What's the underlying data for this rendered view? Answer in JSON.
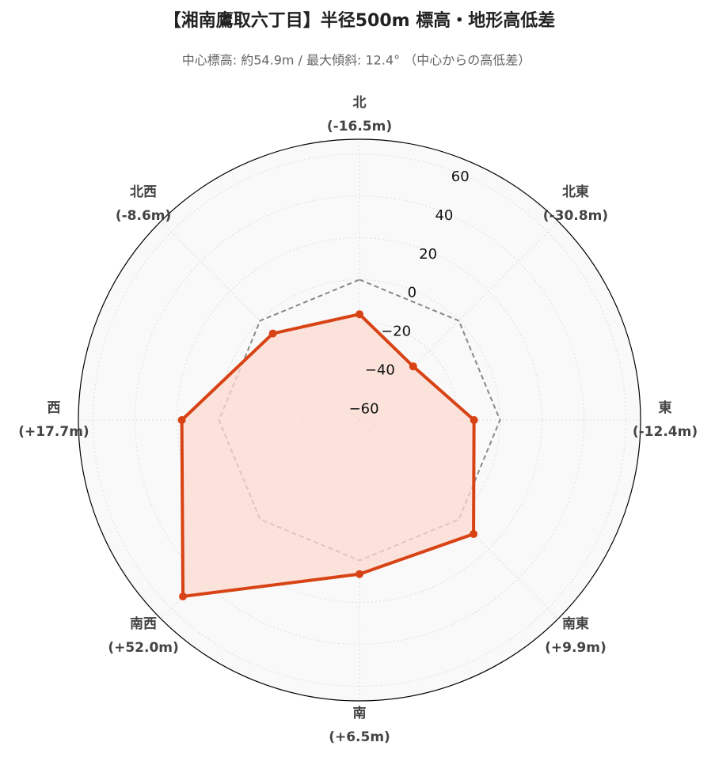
{
  "chart_data": {
    "type": "radar",
    "title": "【湘南鷹取六丁目】半径500m 標高・地形高低差",
    "subtitle": "中心標高: 約54.9m / 最大傾斜: 12.4° （中心からの高低差）",
    "categories": [
      "北",
      "北東",
      "東",
      "南東",
      "南",
      "南西",
      "西",
      "北西"
    ],
    "series": [
      {
        "color": "#d84315",
        "fill": "#fbd9d0",
        "values": [
          -16.5,
          -30.8,
          -12.4,
          9.9,
          6.5,
          52.0,
          17.7,
          -8.6
        ],
        "value_labels": [
          "(-16.5m)",
          "(-30.8m)",
          "(-12.4m)",
          "(+9.9m)",
          "(+6.5m)",
          "(+52.0m)",
          "(+17.7m)",
          "(-8.6m)"
        ]
      },
      {
        "color": "#888888",
        "dashed": true,
        "values": [
          0,
          0,
          0,
          0,
          0,
          0,
          0,
          0
        ]
      }
    ],
    "ylim": [
      -67,
      67
    ],
    "yticks": [
      {
        "value": -60,
        "label": "−60"
      },
      {
        "value": -40,
        "label": "−40"
      },
      {
        "value": -20,
        "label": "−20"
      },
      0,
      20,
      40,
      60
    ],
    "grid": true
  }
}
